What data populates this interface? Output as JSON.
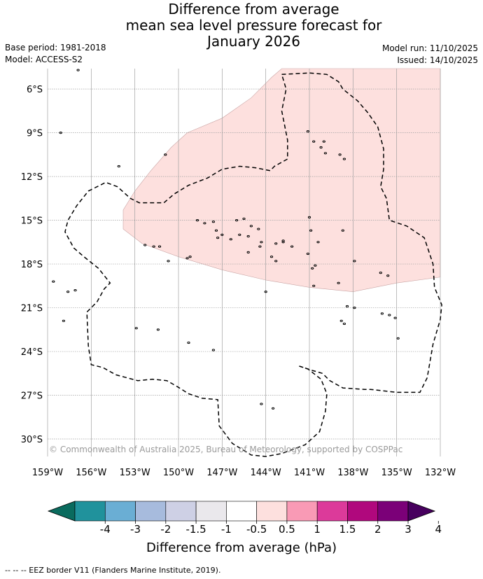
{
  "header": {
    "title_lines": [
      "Difference from average",
      "mean sea level pressure forecast for",
      "January 2026"
    ],
    "base_period": "Base period: 1981-2018",
    "model": "Model: ACCESS-S2",
    "model_run": "Model run: 11/10/2025",
    "issued": "Issued: 14/10/2025"
  },
  "copyright": "© Commonwealth of Australia 2025, Bureau of Meteorology, supported by COSPPac",
  "footer": "--  --  -- EEZ border V11 (Flanders Marine Institute, 2019).",
  "colors": {
    "anomaly_fill": "#fde0de",
    "anomaly_edge": "#c9a5a5",
    "gridline": "#a0a0a0",
    "land": "#000000"
  },
  "chart_data": {
    "type": "map",
    "title": "Difference from average mean sea level pressure forecast for January 2026",
    "x_axis": {
      "range_deg": [
        -159,
        -132
      ],
      "ticks": [
        {
          "value": -159,
          "label": "159°W"
        },
        {
          "value": -156,
          "label": "156°W"
        },
        {
          "value": -153,
          "label": "153°W"
        },
        {
          "value": -150,
          "label": "150°W"
        },
        {
          "value": -147,
          "label": "147°W"
        },
        {
          "value": -144,
          "label": "144°W"
        },
        {
          "value": -141,
          "label": "141°W"
        },
        {
          "value": -138,
          "label": "138°W"
        },
        {
          "value": -135,
          "label": "135°W"
        },
        {
          "value": -132,
          "label": "132°W"
        }
      ]
    },
    "y_axis": {
      "range_deg": [
        -31.2,
        -4.6
      ],
      "ticks": [
        {
          "value": -6,
          "label": "6°S"
        },
        {
          "value": -9,
          "label": "9°S"
        },
        {
          "value": -12,
          "label": "12°S"
        },
        {
          "value": -15,
          "label": "15°S"
        },
        {
          "value": -18,
          "label": "18°S"
        },
        {
          "value": -21,
          "label": "21°S"
        },
        {
          "value": -24,
          "label": "24°S"
        },
        {
          "value": -27,
          "label": "27°S"
        },
        {
          "value": -30,
          "label": "30°S"
        }
      ]
    },
    "anomaly_region": {
      "category": "0.5 to 1 hPa",
      "outline": [
        [
          -142.9,
          -4.6
        ],
        [
          -132.0,
          -4.6
        ],
        [
          -132.0,
          -18.9
        ],
        [
          -135.0,
          -19.3
        ],
        [
          -138.0,
          -19.9
        ],
        [
          -141.0,
          -19.6
        ],
        [
          -144.0,
          -19.1
        ],
        [
          -147.0,
          -18.4
        ],
        [
          -150.0,
          -17.5
        ],
        [
          -152.5,
          -16.6
        ],
        [
          -153.8,
          -15.6
        ],
        [
          -153.8,
          -14.3
        ],
        [
          -153.0,
          -13.0
        ],
        [
          -151.9,
          -11.6
        ],
        [
          -150.5,
          -10.0
        ],
        [
          -149.4,
          -9.0
        ],
        [
          -147.0,
          -8.0
        ],
        [
          -145.0,
          -6.6
        ],
        [
          -143.6,
          -5.2
        ]
      ]
    },
    "colorbar": {
      "label": "Difference from average (hPa)",
      "bins": [
        {
          "lo": "-inf",
          "hi": -4,
          "color": "#0a6b5e"
        },
        {
          "lo": -4,
          "hi": -3,
          "color": "#20929c"
        },
        {
          "lo": -3,
          "hi": -2,
          "color": "#6aaed4"
        },
        {
          "lo": -2,
          "hi": -1.5,
          "color": "#a7bbdd"
        },
        {
          "lo": -1.5,
          "hi": -1,
          "color": "#ced0e5"
        },
        {
          "lo": -1,
          "hi": -0.5,
          "color": "#eae8ec"
        },
        {
          "lo": -0.5,
          "hi": 0.5,
          "color": "#ffffff"
        },
        {
          "lo": 0.5,
          "hi": 1,
          "color": "#fde0de"
        },
        {
          "lo": 1,
          "hi": 1.5,
          "color": "#f99ab5"
        },
        {
          "lo": 1.5,
          "hi": 2,
          "color": "#dc3a9a"
        },
        {
          "lo": 2,
          "hi": 3,
          "color": "#b0087d"
        },
        {
          "lo": 3,
          "hi": 4,
          "color": "#7b0078"
        },
        {
          "lo": 4,
          "hi": "inf",
          "color": "#47005e"
        }
      ],
      "tick_labels": [
        "-4",
        "-3",
        "-2",
        "-1.5",
        "-1",
        "-0.5",
        "0.5",
        "1",
        "1.5",
        "2",
        "3",
        "4"
      ]
    },
    "eez_borders": [
      [
        [
          -142.9,
          -5.0
        ],
        [
          -141.0,
          -4.9
        ],
        [
          -139.8,
          -5.0
        ],
        [
          -139.0,
          -5.5
        ],
        [
          -138.7,
          -6.0
        ],
        [
          -137.7,
          -6.8
        ],
        [
          -137.0,
          -7.6
        ],
        [
          -136.3,
          -8.6
        ],
        [
          -135.9,
          -10.1
        ],
        [
          -135.9,
          -11.5
        ],
        [
          -136.1,
          -12.7
        ],
        [
          -135.7,
          -13.5
        ],
        [
          -135.5,
          -15.0
        ],
        [
          -134.3,
          -15.4
        ],
        [
          -133.1,
          -16.2
        ],
        [
          -132.5,
          -18.0
        ],
        [
          -132.4,
          -19.6
        ],
        [
          -131.9,
          -20.8
        ],
        [
          -132.0,
          -21.8
        ],
        [
          -132.5,
          -23.5
        ],
        [
          -132.9,
          -25.8
        ],
        [
          -133.4,
          -26.8
        ],
        [
          -135.0,
          -26.8
        ],
        [
          -136.8,
          -26.6
        ],
        [
          -137.2,
          -26.6
        ],
        [
          -138.7,
          -26.5
        ],
        [
          -139.6,
          -26.0
        ],
        [
          -140.1,
          -25.5
        ],
        [
          -140.8,
          -25.3
        ],
        [
          -141.7,
          -25.0
        ]
      ],
      [
        [
          -141.7,
          -25.0
        ],
        [
          -141.1,
          -25.2
        ],
        [
          -140.2,
          -25.9
        ],
        [
          -139.8,
          -26.9
        ],
        [
          -139.9,
          -28.1
        ],
        [
          -140.3,
          -29.5
        ],
        [
          -141.3,
          -30.4
        ],
        [
          -142.9,
          -31.0
        ],
        [
          -144.0,
          -31.2
        ],
        [
          -145.0,
          -31.1
        ],
        [
          -146.3,
          -30.3
        ],
        [
          -147.2,
          -29.1
        ],
        [
          -147.3,
          -27.3
        ],
        [
          -148.4,
          -27.2
        ],
        [
          -149.3,
          -26.9
        ],
        [
          -150.1,
          -26.4
        ],
        [
          -150.8,
          -26.0
        ],
        [
          -151.8,
          -25.9
        ],
        [
          -152.8,
          -26.0
        ],
        [
          -154.3,
          -25.6
        ],
        [
          -155.2,
          -25.1
        ],
        [
          -156.0,
          -24.9
        ],
        [
          -156.2,
          -23.6
        ],
        [
          -156.3,
          -21.3
        ],
        [
          -155.6,
          -20.6
        ],
        [
          -155.1,
          -19.7
        ],
        [
          -154.7,
          -19.3
        ],
        [
          -155.5,
          -18.3
        ],
        [
          -156.5,
          -17.5
        ],
        [
          -157.2,
          -16.9
        ],
        [
          -157.8,
          -15.8
        ],
        [
          -157.6,
          -15.0
        ],
        [
          -157.0,
          -14.0
        ],
        [
          -156.2,
          -13.0
        ],
        [
          -155.0,
          -12.4
        ],
        [
          -154.2,
          -12.7
        ],
        [
          -153.3,
          -13.5
        ],
        [
          -152.7,
          -13.8
        ],
        [
          -151.0,
          -13.8
        ],
        [
          -150.3,
          -13.2
        ],
        [
          -149.3,
          -12.6
        ],
        [
          -148.0,
          -12.1
        ],
        [
          -147.0,
          -11.5
        ],
        [
          -145.8,
          -11.3
        ],
        [
          -144.7,
          -11.4
        ],
        [
          -143.7,
          -11.6
        ],
        [
          -143.4,
          -11.3
        ],
        [
          -142.5,
          -10.8
        ],
        [
          -142.5,
          -9.5
        ],
        [
          -142.9,
          -7.5
        ],
        [
          -142.6,
          -6.0
        ],
        [
          -142.9,
          -5.0
        ]
      ]
    ],
    "islands": [
      [
        -156.9,
        -4.7
      ],
      [
        -158.1,
        -9.0
      ],
      [
        -150.9,
        -10.5
      ],
      [
        -154.1,
        -11.3
      ],
      [
        -141.1,
        -8.9
      ],
      [
        -140.7,
        -9.6
      ],
      [
        -140.0,
        -9.6
      ],
      [
        -140.2,
        -10.0
      ],
      [
        -139.9,
        -10.4
      ],
      [
        -138.9,
        -10.5
      ],
      [
        -138.6,
        -10.8
      ],
      [
        -141.0,
        -14.8
      ],
      [
        -140.9,
        -15.7
      ],
      [
        -138.7,
        -15.7
      ],
      [
        -146.0,
        -15.0
      ],
      [
        -145.5,
        -14.9
      ],
      [
        -145.0,
        -15.4
      ],
      [
        -144.5,
        -15.6
      ],
      [
        -145.8,
        -16.0
      ],
      [
        -145.2,
        -16.1
      ],
      [
        -144.3,
        -16.5
      ],
      [
        -143.3,
        -16.6
      ],
      [
        -142.8,
        -16.5
      ],
      [
        -142.2,
        -16.8
      ],
      [
        -142.8,
        -16.4
      ],
      [
        -141.1,
        -17.3
      ],
      [
        -140.4,
        -16.5
      ],
      [
        -143.6,
        -17.5
      ],
      [
        -143.3,
        -17.8
      ],
      [
        -145.2,
        -17.2
      ],
      [
        -144.4,
        -16.8
      ],
      [
        -149.4,
        -17.6
      ],
      [
        -149.2,
        -17.5
      ],
      [
        -151.3,
        -16.8
      ],
      [
        -151.7,
        -16.8
      ],
      [
        -152.3,
        -16.7
      ],
      [
        -150.7,
        -17.8
      ],
      [
        -148.7,
        -15.0
      ],
      [
        -148.2,
        -15.2
      ],
      [
        -147.6,
        -15.1
      ],
      [
        -147.4,
        -15.7
      ],
      [
        -147.3,
        -16.2
      ],
      [
        -147.0,
        -16.0
      ],
      [
        -146.4,
        -16.3
      ],
      [
        -140.7,
        -19.5
      ],
      [
        -139.0,
        -19.3
      ],
      [
        -137.9,
        -17.8
      ],
      [
        -136.1,
        -18.6
      ],
      [
        -135.6,
        -18.8
      ],
      [
        -140.8,
        -18.3
      ],
      [
        -140.6,
        -18.1
      ],
      [
        -144.0,
        -19.9
      ],
      [
        -138.4,
        -20.9
      ],
      [
        -137.9,
        -21.0
      ],
      [
        -138.8,
        -21.9
      ],
      [
        -138.6,
        -22.1
      ],
      [
        -136.0,
        -21.4
      ],
      [
        -135.5,
        -21.5
      ],
      [
        -135.1,
        -21.7
      ],
      [
        -134.9,
        -23.1
      ],
      [
        -158.6,
        -19.2
      ],
      [
        -157.1,
        -19.8
      ],
      [
        -157.6,
        -19.9
      ],
      [
        -157.9,
        -21.9
      ],
      [
        -152.9,
        -22.4
      ],
      [
        -151.4,
        -22.5
      ],
      [
        -149.3,
        -23.4
      ],
      [
        -147.6,
        -23.9
      ],
      [
        -144.3,
        -27.6
      ],
      [
        -143.5,
        -27.9
      ]
    ]
  }
}
